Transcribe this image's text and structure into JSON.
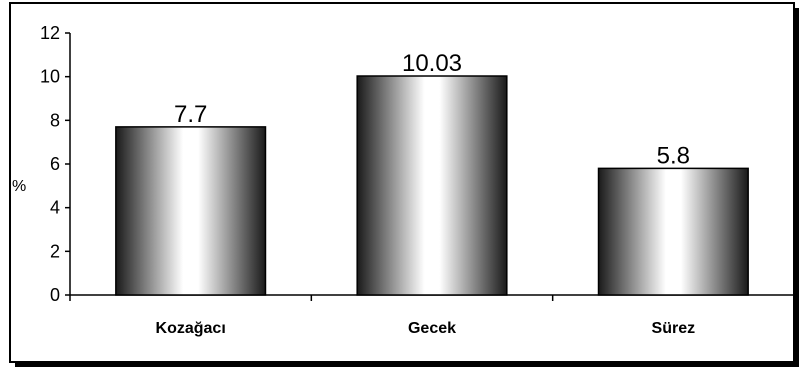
{
  "chart_data": {
    "type": "bar",
    "categories": [
      "Kozağacı",
      "Gecek",
      "Sürez"
    ],
    "values": [
      7.7,
      10.03,
      5.8
    ],
    "data_labels": [
      "7.7",
      "10.03",
      "5.8"
    ],
    "title": "",
    "xlabel": "",
    "ylabel": "%",
    "ylim": [
      0,
      12
    ],
    "yticks": [
      0,
      2,
      4,
      6,
      8,
      10,
      12
    ],
    "grid": false,
    "legend": "none",
    "bar_style": "cylindrical-gradient",
    "colors": {
      "bar_dark": "#1a1a1a",
      "bar_light": "#ffffff",
      "outline": "#000000"
    }
  }
}
